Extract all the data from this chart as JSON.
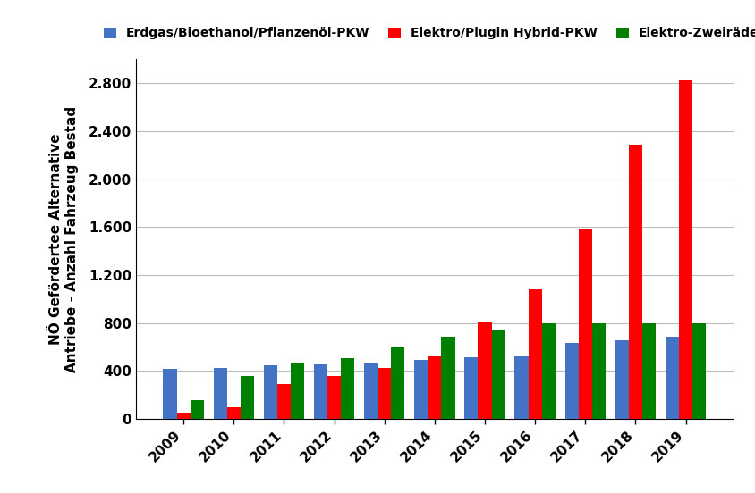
{
  "years": [
    2009,
    2010,
    2011,
    2012,
    2013,
    2014,
    2015,
    2016,
    2017,
    2018,
    2019
  ],
  "erdgas": [
    415,
    425,
    445,
    455,
    465,
    490,
    515,
    520,
    635,
    660,
    685
  ],
  "elektro": [
    50,
    100,
    290,
    360,
    425,
    520,
    805,
    1080,
    1590,
    2290,
    2820
  ],
  "zweirad": [
    155,
    360,
    460,
    510,
    600,
    685,
    745,
    800,
    800,
    800,
    800
  ],
  "bar_colors": [
    "#4472C4",
    "#FF0000",
    "#008000"
  ],
  "legend_labels": [
    "Erdgas/Bioethanol/Pflanzenöl-PKW",
    "Elektro/Plugin Hybrid-PKW",
    "Elektro-Zweiräder"
  ],
  "ylabel_line1": "NÖ Gefördertee Alternative",
  "ylabel_line2": "Antriebe - Anzahl Fahrzeug Bestad",
  "ylim": [
    0,
    3000
  ],
  "yticks": [
    0,
    400,
    800,
    1200,
    1600,
    2000,
    2400,
    2800
  ],
  "ytick_labels": [
    "0",
    "400",
    "800",
    "1.200",
    "1.600",
    "2.000",
    "2.400",
    "2.800"
  ],
  "background_color": "#FFFFFF",
  "grid_color": "#BBBBBB"
}
